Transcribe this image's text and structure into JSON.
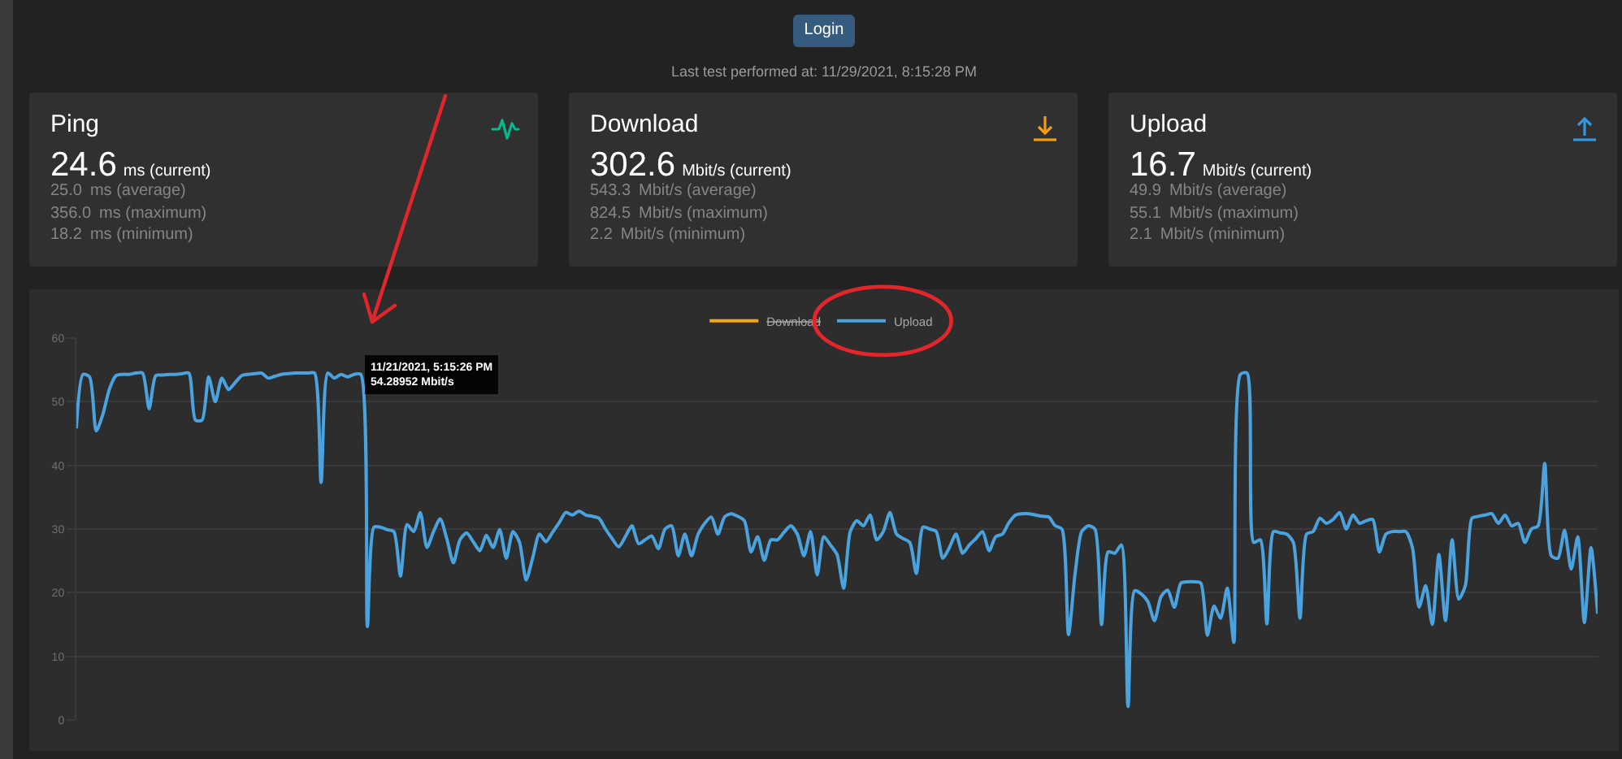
{
  "chart_data": [
    {
      "type": "other",
      "annotations": [
        "Login",
        "Last test performed at: 11/29/2021, 8:15:28 PM"
      ]
    },
    {
      "type": "other",
      "title": "Ping",
      "annotations": [
        "24.6 ms (current)",
        "25.0 ms (average)",
        "356.0 ms (maximum)",
        "18.2 ms (minimum)"
      ]
    },
    {
      "type": "other",
      "title": "Download",
      "annotations": [
        "302.6 Mbit/s (current)",
        "543.3 Mbit/s (average)",
        "824.5 Mbit/s (maximum)",
        "2.2 Mbit/s (minimum)"
      ]
    },
    {
      "type": "other",
      "title": "Upload",
      "annotations": [
        "16.7 Mbit/s (current)",
        "49.9 Mbit/s (average)",
        "55.1 Mbit/s (maximum)",
        "2.1 Mbit/s (minimum)"
      ]
    },
    {
      "type": "line",
      "categories": [
        null,
        null,
        null,
        null,
        null,
        null,
        null,
        null,
        null,
        null,
        null,
        null,
        null,
        null,
        null,
        null,
        null,
        null,
        null,
        null,
        null,
        null,
        null,
        null,
        null,
        null,
        null,
        null,
        null,
        null,
        null,
        null,
        null,
        null,
        null,
        null,
        null,
        null,
        null,
        null,
        null,
        null,
        null,
        null,
        null,
        null,
        null,
        null,
        null,
        null,
        null,
        null,
        null,
        null,
        null,
        null,
        null,
        null,
        null,
        null,
        null,
        null,
        null,
        null,
        null,
        null,
        null,
        null,
        null,
        null,
        null,
        null,
        null,
        null,
        null,
        null,
        null,
        null,
        null,
        null,
        null,
        null,
        null,
        null,
        null,
        null,
        null,
        null,
        null,
        null,
        null,
        null,
        null,
        null,
        null,
        null,
        null,
        null,
        null,
        null,
        null,
        null,
        null,
        null,
        null,
        null,
        null,
        null,
        null,
        null,
        null,
        null,
        null,
        null,
        null,
        null,
        null,
        null,
        null,
        null,
        null,
        null,
        null,
        null,
        null,
        null,
        null,
        null,
        null,
        null,
        null,
        null,
        null,
        null,
        null,
        null,
        null,
        null,
        null,
        null,
        null,
        null,
        null,
        null,
        null,
        null,
        null,
        null,
        null,
        null,
        null,
        null,
        null,
        null,
        null,
        null,
        null,
        null,
        null,
        null,
        null,
        null,
        null,
        null,
        null,
        null,
        null,
        null,
        null,
        null,
        null,
        null,
        null,
        null,
        null,
        null,
        null,
        null,
        null,
        null,
        null,
        null,
        null,
        null,
        null,
        null,
        null,
        null,
        null,
        null,
        null,
        null,
        null,
        null,
        null,
        null,
        null,
        null,
        null,
        null,
        null,
        null,
        null,
        null,
        null,
        null,
        null,
        null,
        null,
        null,
        null,
        null,
        null,
        null,
        null,
        null,
        null,
        null,
        null,
        null,
        null,
        null,
        null,
        null,
        null,
        null,
        null,
        null,
        null,
        null,
        null
      ],
      "series": [
        {
          "name": "Download",
          "color": "#f5a70f",
          "values": [
            null,
            null,
            null,
            null,
            null,
            null,
            null,
            null,
            null,
            null,
            null,
            null,
            null,
            null,
            null,
            null,
            null,
            null,
            null,
            null,
            null,
            null,
            null,
            null,
            null,
            null,
            null,
            null,
            null,
            null,
            null,
            null,
            null,
            null,
            null,
            null,
            null,
            null,
            null,
            null,
            null,
            null,
            null,
            null,
            null,
            null,
            null,
            null,
            null,
            null,
            null,
            null,
            null,
            null,
            null,
            null,
            null,
            null,
            null,
            null,
            null,
            null,
            null,
            null,
            null,
            null,
            null,
            null,
            null,
            null,
            null,
            null,
            null,
            null,
            null,
            null,
            null,
            null,
            null,
            null,
            null,
            null,
            null,
            null,
            null,
            null,
            null,
            null,
            null,
            null,
            null,
            null,
            null,
            null,
            null,
            null,
            null,
            null,
            null,
            null,
            null,
            null,
            null,
            null,
            null,
            null,
            null,
            null,
            null,
            null,
            null,
            null,
            null,
            null,
            null,
            null,
            null,
            null,
            null,
            null,
            null,
            null,
            null,
            null,
            null,
            null,
            null,
            null,
            null,
            null,
            null,
            null,
            null,
            null,
            null,
            null,
            null,
            null,
            null,
            null,
            null,
            null,
            null,
            null,
            null,
            null,
            null,
            null,
            null,
            null,
            null,
            null,
            null,
            null,
            null,
            null,
            null,
            null,
            null,
            null,
            null,
            null,
            null,
            null,
            null,
            null,
            null,
            null,
            null,
            null,
            null,
            null,
            null,
            null,
            null,
            null,
            null,
            null,
            null,
            null,
            null,
            null,
            null,
            null,
            null,
            null,
            null,
            null,
            null,
            null,
            null,
            null,
            null,
            null,
            null,
            null,
            null,
            null,
            null,
            null,
            null,
            null,
            null,
            null,
            null,
            null,
            null,
            null,
            null,
            null,
            null,
            null,
            null,
            null,
            null,
            null,
            null,
            null,
            null,
            null,
            null,
            null,
            null,
            null,
            null,
            null,
            null,
            null,
            null,
            null,
            null
          ]
        },
        {
          "name": "Upload",
          "color": "#4aa3df",
          "values": [
            45.8,
            54.3,
            53.9,
            45.4,
            48.0,
            52.0,
            54.1,
            54.3,
            54.3,
            54.5,
            54.5,
            48.9,
            54.1,
            54.2,
            54.3,
            54.3,
            54.4,
            54.5,
            47.1,
            47.1,
            53.9,
            50.0,
            53.7,
            51.9,
            53.0,
            54.1,
            54.3,
            54.4,
            54.5,
            53.7,
            54.0,
            54.3,
            54.4,
            54.5,
            54.5,
            54.5,
            54.5,
            37.3,
            54.5,
            53.7,
            54.3,
            53.9,
            54.3,
            54.28952,
            14.7,
            30.3,
            30.3,
            29.9,
            29.6,
            22.6,
            30.7,
            29.6,
            32.6,
            27.1,
            29.6,
            31.6,
            28.5,
            24.7,
            28.3,
            29.4,
            28.0,
            26.6,
            29.0,
            27.1,
            29.9,
            25.4,
            29.6,
            27.9,
            22.0,
            25.5,
            29.2,
            28.0,
            29.5,
            31.0,
            32.6,
            32.2,
            32.8,
            32.2,
            32.0,
            31.7,
            30.0,
            28.5,
            27.2,
            28.8,
            30.5,
            27.7,
            28.3,
            28.9,
            26.9,
            30.0,
            30.5,
            25.8,
            29.2,
            25.8,
            29.2,
            30.9,
            31.9,
            29.2,
            31.9,
            32.4,
            32.0,
            31.3,
            26.4,
            28.8,
            25.1,
            28.3,
            28.3,
            29.5,
            30.5,
            29.2,
            25.8,
            29.6,
            22.8,
            28.8,
            27.5,
            26.0,
            20.7,
            29.6,
            31.3,
            30.5,
            32.2,
            28.3,
            29.6,
            32.6,
            29.2,
            28.5,
            27.9,
            23.0,
            30.3,
            30.0,
            29.6,
            25.4,
            27.1,
            29.2,
            26.2,
            27.5,
            28.5,
            29.6,
            26.6,
            28.8,
            29.2,
            31.0,
            32.2,
            32.4,
            32.4,
            32.2,
            32.0,
            31.9,
            30.5,
            30.0,
            13.4,
            23.0,
            29.6,
            30.5,
            30.0,
            15.0,
            26.4,
            26.2,
            27.5,
            2.1,
            20.3,
            19.8,
            18.6,
            15.6,
            19.4,
            20.4,
            17.7,
            21.5,
            21.7,
            21.7,
            21.5,
            13.3,
            17.9,
            16.0,
            20.7,
            12.2,
            54.3,
            54.5,
            27.9,
            28.3,
            15.1,
            29.6,
            29.4,
            29.2,
            27.9,
            16.0,
            29.2,
            29.6,
            31.7,
            30.9,
            31.5,
            32.6,
            30.0,
            32.2,
            30.9,
            31.3,
            31.5,
            26.4,
            29.2,
            29.6,
            29.6,
            29.6,
            27.1,
            17.7,
            21.1,
            15.0,
            26.0,
            15.6,
            28.3,
            19.0,
            21.1,
            31.7,
            32.0,
            32.2,
            32.4,
            30.9,
            32.2,
            30.5,
            30.9,
            27.9,
            30.0,
            30.5,
            40.3,
            25.8,
            25.4,
            29.8,
            23.7,
            28.8,
            15.3,
            27.1,
            16.7
          ]
        }
      ],
      "ylim": [
        0,
        60
      ],
      "yticks": [
        0,
        10,
        20,
        30,
        40,
        50,
        60
      ],
      "grid": "y",
      "legend": "top",
      "tick_labels": "y",
      "annotations": [
        "11/21/2021, 5:15:26 PM\n54.28952 Mbit/s"
      ]
    }
  ]
}
